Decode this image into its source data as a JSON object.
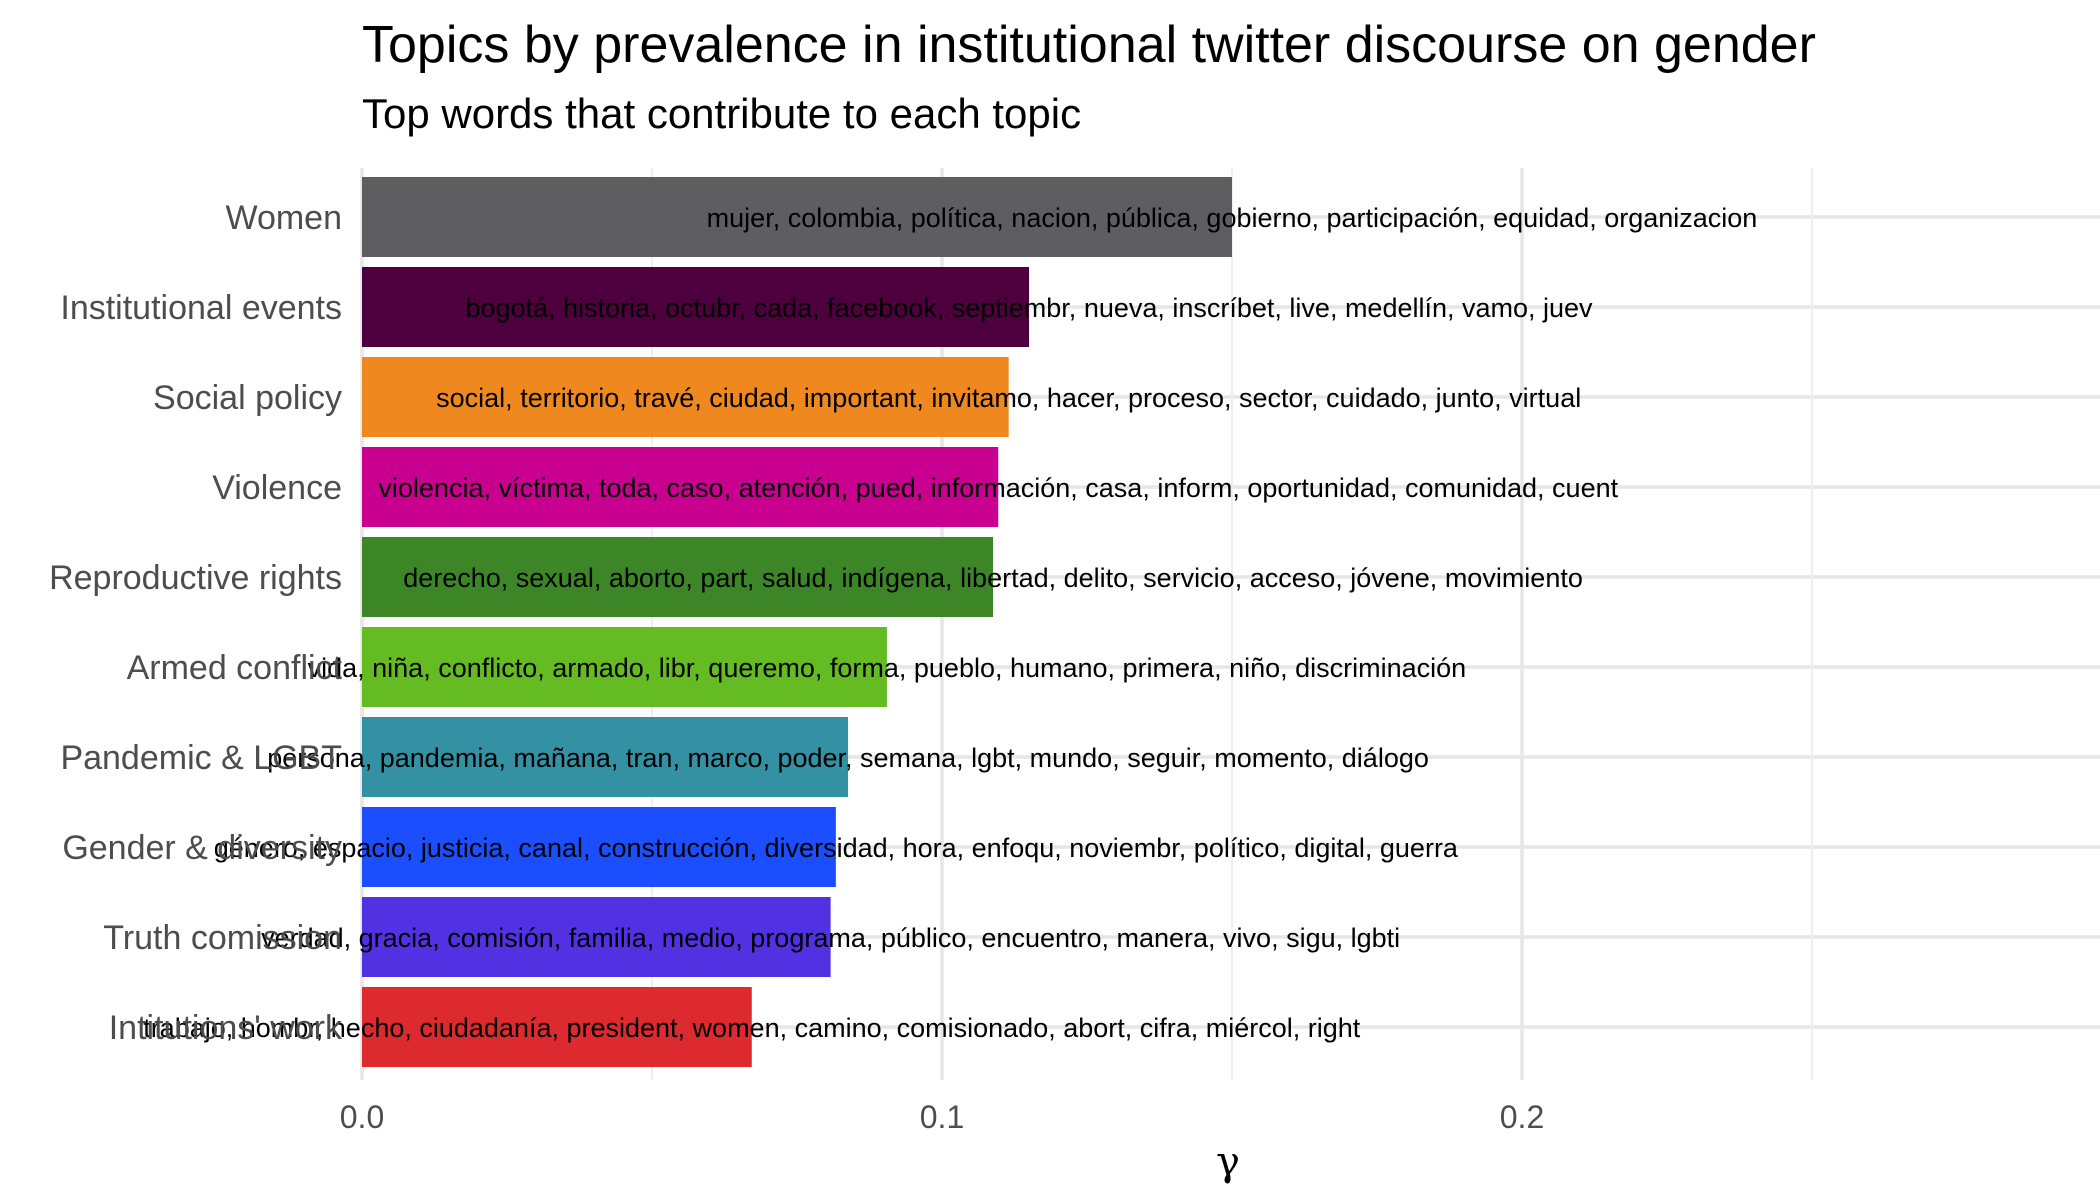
{
  "chart_data": {
    "type": "bar",
    "orientation": "horizontal",
    "title": "Topics by prevalence in institutional twitter discourse on gender",
    "subtitle": "Top words that contribute to each topic",
    "xlabel": "γ",
    "ylabel": "",
    "xlim": [
      0,
      0.3
    ],
    "xticks": [
      0.0,
      0.1,
      0.2
    ],
    "xtick_labels": [
      "0.0",
      "0.1",
      "0.2"
    ],
    "grid": true,
    "legend": "none",
    "categories": [
      "Women",
      "Institutional events",
      "Social policy",
      "Violence",
      "Reproductive rights",
      "Armed conflict",
      "Pandemic & LGBT",
      "Gender & diversity",
      "Truth comission",
      "Intitutions' work"
    ],
    "values": [
      0.15,
      0.115,
      0.1115,
      0.1097,
      0.1088,
      0.0905,
      0.0838,
      0.0817,
      0.0808,
      0.0672
    ],
    "colors": [
      "#5e5e60",
      "#4d003d",
      "#f08820",
      "#c9008f",
      "#3d8628",
      "#64bc22",
      "#3490a3",
      "#1a4eff",
      "#5231e2",
      "#dd2a2f"
    ],
    "labels": [
      "mujer, colombia, política, nacion, pública, gobierno, participación, equidad, organizacion",
      "bogotá, historia, octubr, cada, facebook, septiembr, nueva, inscríbet, live, medellín, vamo, juev",
      "social, territorio, travé, ciudad, important, invitamo, hacer, proceso, sector, cuidado, junto, virtual",
      "violencia, víctima, toda, caso, atención, pued, información, casa, inform, oportunidad, comunidad, cuent",
      "derecho, sexual, aborto, part, salud, indígena, libertad, delito, servicio, acceso, jóvene, movimiento",
      "vida, niña, conflicto, armado, libr, queremo, forma, pueblo, humano, primera, niño, discriminación",
      "persona, pandemia, mañana, tran, marco, poder, semana, lgbt, mundo, seguir, momento, diálogo",
      "género, espacio, justicia, canal, construcción, diversidad, hora, enfoqu, noviembr, político, digital, guerra",
      "verdad, gracia, comisión, familia, medio, programa, público, encuentro, manera, vivo, sigu, lgbti",
      "trabajo, hombr, hecho, ciudadanía, president, women, camino, comisionado, abort, cifra, miércol, right"
    ]
  }
}
